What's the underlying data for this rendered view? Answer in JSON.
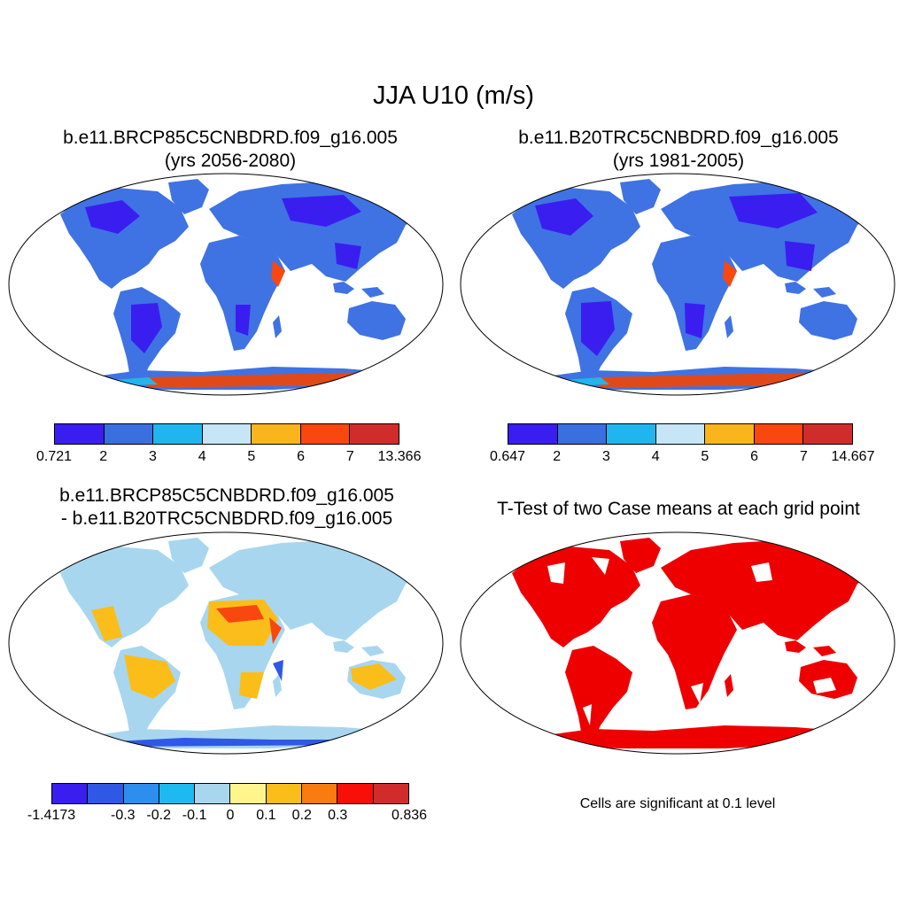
{
  "title": "JJA U10 (m/s)",
  "panels": {
    "future": {
      "title_line1": "b.e11.BRCP85C5CNBDRD.f09_g16.005",
      "title_line2": "(yrs 2056-2080)"
    },
    "historical": {
      "title_line1": "b.e11.B20TRC5CNBDRD.f09_g16.005",
      "title_line2": "(yrs 1981-2005)"
    },
    "difference": {
      "title_line1": "b.e11.BRCP85C5CNBDRD.f09_g16.005",
      "title_line2": "- b.e11.B20TRC5CNBDRD.f09_g16.005"
    },
    "ttest": {
      "title_line1": "T-Test of two Case means at each grid point",
      "note": "Cells are significant at 0.1 level"
    }
  },
  "colorbars": {
    "future": {
      "labels": [
        "0.721",
        "2",
        "3",
        "4",
        "5",
        "6",
        "7",
        "13.366"
      ],
      "colors": [
        "#3a1ef0",
        "#3a6fe0",
        "#1fb6ef",
        "#c6e5f6",
        "#fbb51c",
        "#f8470f",
        "#d02c2c"
      ]
    },
    "historical": {
      "labels": [
        "0.647",
        "2",
        "3",
        "4",
        "5",
        "6",
        "7",
        "14.667"
      ],
      "colors": [
        "#3a1ef0",
        "#3a6fe0",
        "#1fb6ef",
        "#c6e5f6",
        "#fbb51c",
        "#f8470f",
        "#d02c2c"
      ]
    },
    "difference": {
      "labels": [
        "-1.4173",
        "",
        "-0.3",
        "-0.2",
        "-0.1",
        "0",
        "0.1",
        "0.2",
        "0.3",
        "",
        "0.836"
      ],
      "colors": [
        "#3a1ef0",
        "#3058e6",
        "#2e8ef0",
        "#1cbaf0",
        "#a8d6ef",
        "#fff58c",
        "#fbbd1a",
        "#fa7b10",
        "#f70f08",
        "#d02c2c"
      ]
    }
  },
  "map_colors": {
    "land_future": "#3f73e3",
    "land_historical": "#3f73e3",
    "low_wind": "#3a1ef0",
    "antarctic_high": "#e04a1a",
    "diff_land": "#a8d6ef",
    "diff_positive": "#fbbd1a",
    "diff_strong": "#f8470f",
    "significant": "#ee0000"
  }
}
